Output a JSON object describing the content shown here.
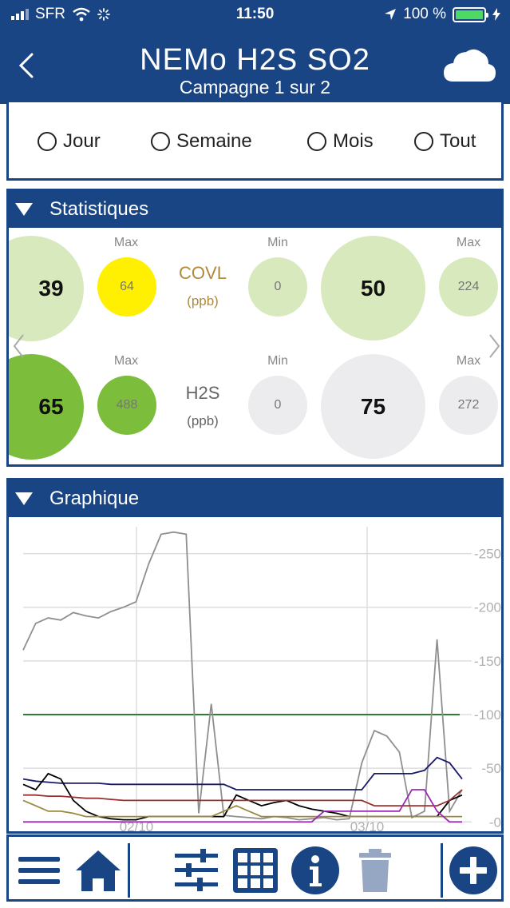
{
  "status": {
    "carrier": "SFR",
    "time": "11:50",
    "battery": "100 %"
  },
  "header": {
    "title": "NEMo H2S SO2",
    "subtitle": "Campagne 1 sur 2"
  },
  "period": {
    "options": [
      "Jour",
      "Semaine",
      "Mois",
      "Tout"
    ]
  },
  "stats": {
    "title": "Statistiques",
    "rows": [
      {
        "pollutant": "COVL",
        "unit": "(ppb)",
        "left_value": "39",
        "left_max_label": "Max",
        "left_max": "64",
        "min_label": "Min",
        "min": "0",
        "center_value": "50",
        "max_label": "Max",
        "max": "224",
        "colors": {
          "left": "#d8e9be",
          "left_max": "#ffef00",
          "min": "#d8e9be",
          "center": "#d8e9be",
          "max": "#d8e9be",
          "name": "#b08a3a"
        }
      },
      {
        "pollutant": "H2S",
        "unit": "(ppb)",
        "left_value": "65",
        "left_max_label": "Max",
        "left_max": "488",
        "min_label": "Min",
        "min": "0",
        "center_value": "75",
        "max_label": "Max",
        "max": "272",
        "colors": {
          "left": "#7dbd3c",
          "left_max": "#7dbd3c",
          "min": "#ececee",
          "center": "#ececee",
          "max": "#ececee",
          "name": "#666666"
        }
      }
    ]
  },
  "graph": {
    "title": "Graphique",
    "x_ticks": [
      "02/10",
      "03/10"
    ],
    "y_ticks": [
      "250",
      "200",
      "150",
      "100",
      "50",
      "0"
    ]
  },
  "chart_data": {
    "type": "line",
    "x_labels": [
      "02/10",
      "03/10"
    ],
    "ylim": [
      -5,
      275
    ],
    "yticks": [
      0,
      50,
      100,
      150,
      200,
      250
    ],
    "grid": true,
    "threshold": {
      "value": 100,
      "color": "#2e7d32"
    },
    "series": [
      {
        "color": "#8f8f8f",
        "values": [
          160,
          185,
          190,
          188,
          195,
          192,
          190,
          196,
          200,
          205,
          240,
          268,
          270,
          268,
          8,
          110,
          6,
          5,
          4,
          3,
          5,
          4,
          2,
          3,
          4,
          2,
          3,
          55,
          85,
          80,
          65,
          4,
          10,
          170,
          10,
          30
        ]
      },
      {
        "color": "#1a1a6a",
        "values": [
          40,
          38,
          37,
          36,
          36,
          36,
          36,
          35,
          35,
          35,
          35,
          35,
          35,
          35,
          35,
          35,
          35,
          30,
          30,
          30,
          30,
          30,
          30,
          30,
          30,
          30,
          30,
          30,
          45,
          45,
          45,
          45,
          48,
          60,
          55,
          40
        ]
      },
      {
        "color": "#000000",
        "values": [
          35,
          30,
          45,
          40,
          20,
          10,
          5,
          3,
          2,
          2,
          5,
          5,
          5,
          5,
          5,
          5,
          5,
          25,
          20,
          15,
          18,
          20,
          15,
          12,
          10,
          8,
          5,
          5,
          5,
          5,
          5,
          5,
          5,
          5,
          20,
          25
        ]
      },
      {
        "color": "#9a3030",
        "values": [
          25,
          25,
          24,
          24,
          23,
          22,
          22,
          21,
          20,
          20,
          20,
          20,
          20,
          20,
          20,
          20,
          20,
          20,
          20,
          20,
          20,
          20,
          20,
          20,
          20,
          20,
          20,
          20,
          15,
          15,
          15,
          15,
          15,
          15,
          20,
          30
        ]
      },
      {
        "color": "#9a8a40",
        "values": [
          20,
          15,
          10,
          10,
          8,
          5,
          5,
          5,
          5,
          5,
          5,
          5,
          5,
          5,
          5,
          5,
          10,
          15,
          10,
          5,
          5,
          5,
          5,
          5,
          5,
          5,
          5,
          5,
          5,
          5,
          5,
          5,
          5,
          5,
          5,
          5
        ]
      },
      {
        "color": "#9a2ab0",
        "values": [
          0,
          0,
          0,
          0,
          0,
          0,
          0,
          0,
          0,
          0,
          0,
          0,
          0,
          0,
          0,
          0,
          0,
          0,
          0,
          0,
          0,
          0,
          0,
          0,
          10,
          10,
          10,
          10,
          10,
          10,
          10,
          30,
          30,
          10,
          0,
          0
        ]
      }
    ]
  },
  "toolbar": {
    "icons": [
      "menu-icon",
      "home-icon",
      "filters-icon",
      "grid-icon",
      "info-icon",
      "trash-icon",
      "add-icon"
    ]
  }
}
